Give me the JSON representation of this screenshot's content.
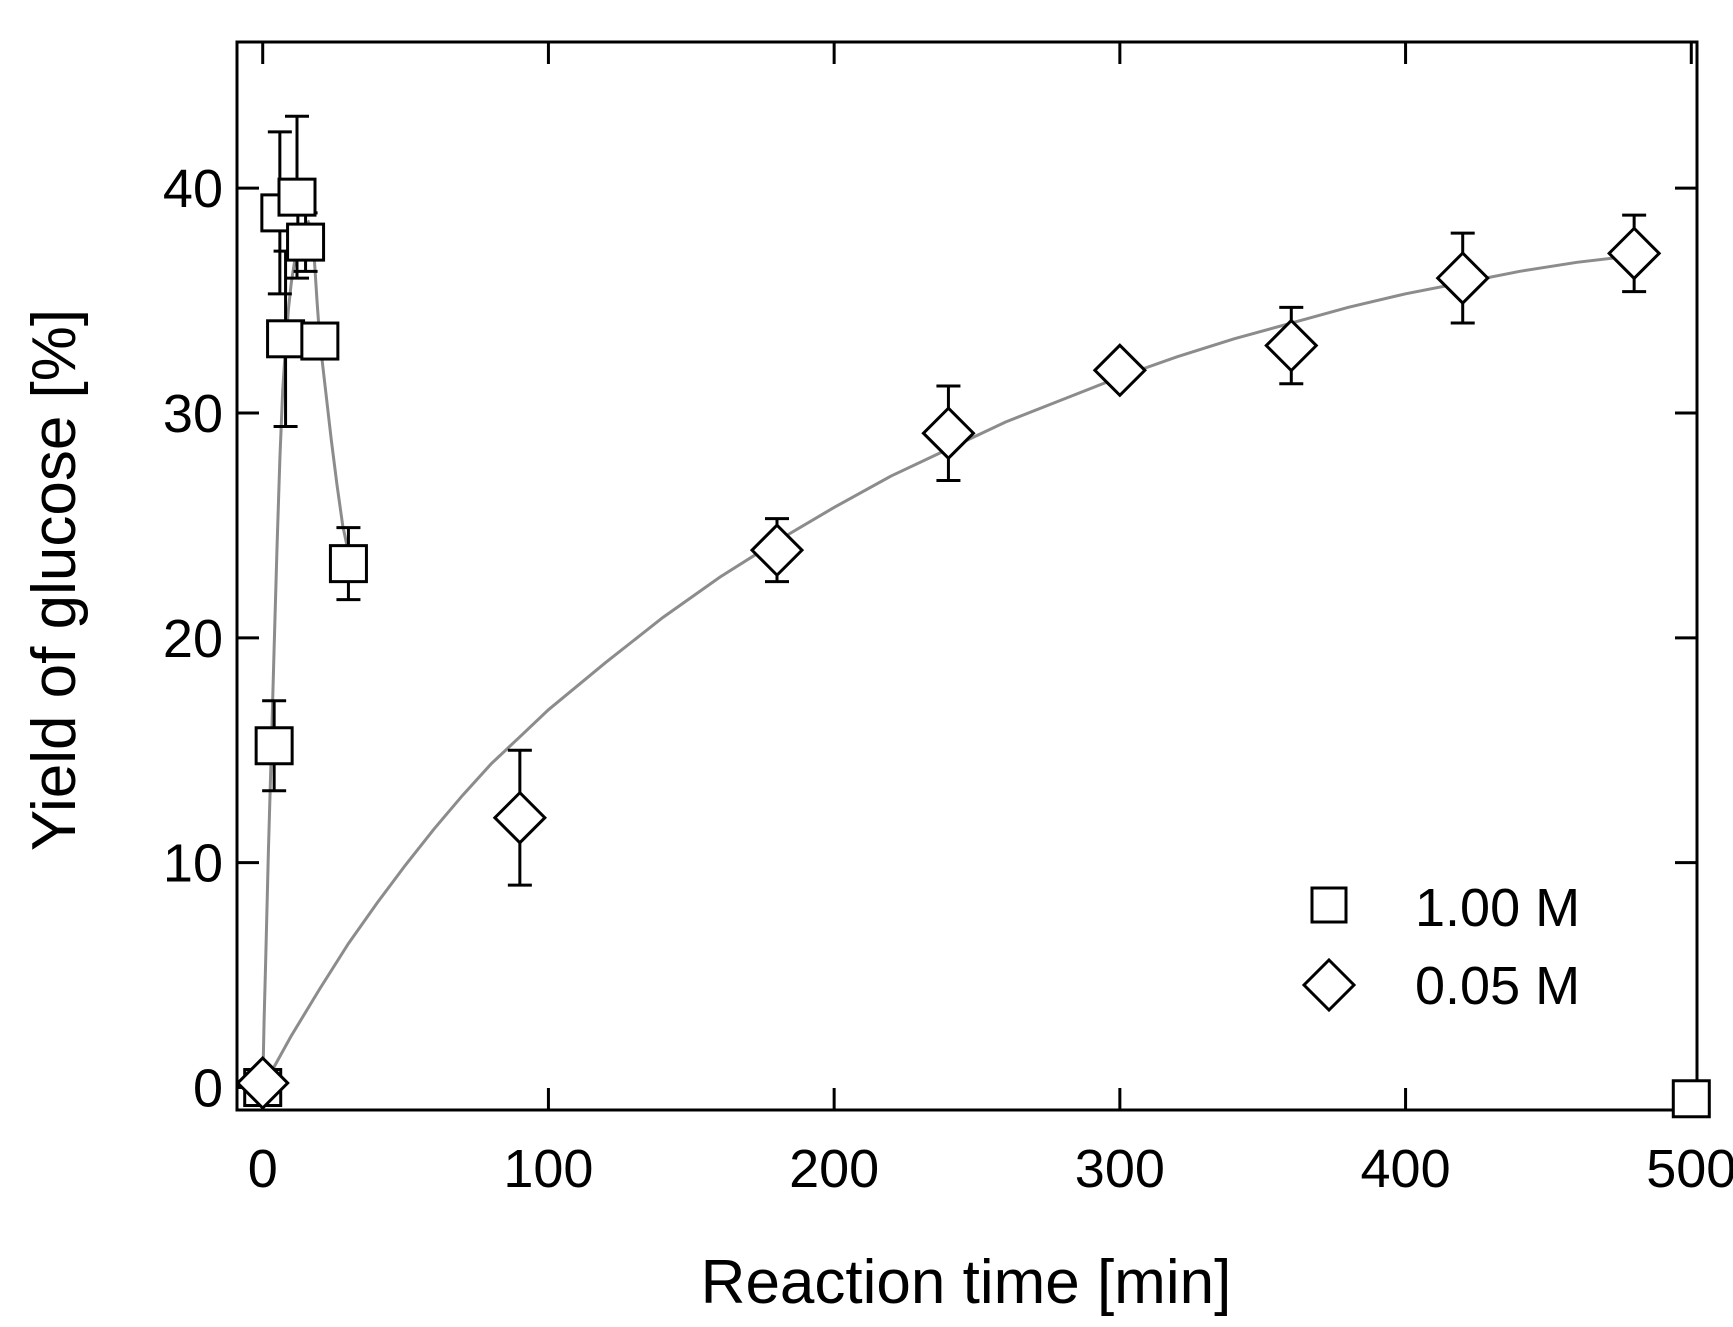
{
  "chart_data": {
    "type": "scatter",
    "xlabel": "Reaction time [min]",
    "ylabel": "Yield of glucose [%]",
    "xlim": [
      -9,
      502
    ],
    "ylim": [
      -1,
      46.5
    ],
    "x_ticks": [
      0,
      100,
      200,
      300,
      400,
      500
    ],
    "y_ticks": [
      0,
      10,
      20,
      30,
      40
    ],
    "grid": false,
    "legend_position": "bottom-right",
    "series": [
      {
        "name": "1.00 M",
        "marker": "square",
        "points": [
          {
            "x": 0,
            "y": 0,
            "err": 0
          },
          {
            "x": 4,
            "y": 15.2,
            "err": 2.0
          },
          {
            "x": 8,
            "y": 33.3,
            "err": 3.9
          },
          {
            "x": 6,
            "y": 38.9,
            "err": 3.6
          },
          {
            "x": 12,
            "y": 39.6,
            "err": 3.6
          },
          {
            "x": 15,
            "y": 37.6,
            "err": 1.3
          },
          {
            "x": 20,
            "y": 33.2,
            "err": 0
          },
          {
            "x": 30,
            "y": 23.3,
            "err": 1.6
          },
          {
            "x": 500,
            "y": -0.5,
            "err": 0
          }
        ],
        "fit": [
          [
            0,
            0
          ],
          [
            0.5,
            3
          ],
          [
            1,
            5.5
          ],
          [
            1.5,
            8
          ],
          [
            2,
            10.5
          ],
          [
            3,
            15
          ],
          [
            4,
            19.5
          ],
          [
            5,
            24
          ],
          [
            6,
            28
          ],
          [
            7,
            31
          ],
          [
            8,
            33
          ],
          [
            9,
            34.6
          ],
          [
            10,
            35.8
          ],
          [
            11,
            36.6
          ],
          [
            12,
            37.3
          ],
          [
            14,
            38.3
          ],
          [
            16,
            38.5
          ],
          [
            17,
            38.2
          ],
          [
            18,
            37
          ],
          [
            19,
            35
          ],
          [
            20,
            33.2
          ],
          [
            22,
            31
          ],
          [
            24,
            28.8
          ],
          [
            26,
            26.8
          ],
          [
            28,
            25
          ],
          [
            30,
            23.8
          ]
        ]
      },
      {
        "name": "0.05 M",
        "marker": "diamond",
        "points": [
          {
            "x": 0,
            "y": 0.2,
            "err": 0
          },
          {
            "x": 90,
            "y": 12.0,
            "err": 3.0
          },
          {
            "x": 180,
            "y": 23.9,
            "err": 1.4
          },
          {
            "x": 240,
            "y": 29.1,
            "err": 2.1
          },
          {
            "x": 300,
            "y": 31.9,
            "err": 0
          },
          {
            "x": 360,
            "y": 33.0,
            "err": 1.7
          },
          {
            "x": 420,
            "y": 36.0,
            "err": 2.0
          },
          {
            "x": 480,
            "y": 37.1,
            "err": 1.7
          }
        ],
        "fit": [
          [
            0,
            0
          ],
          [
            10,
            2.3
          ],
          [
            20,
            4.4
          ],
          [
            30,
            6.4
          ],
          [
            40,
            8.2
          ],
          [
            50,
            9.9
          ],
          [
            60,
            11.5
          ],
          [
            70,
            13
          ],
          [
            80,
            14.4
          ],
          [
            90,
            15.6
          ],
          [
            100,
            16.8
          ],
          [
            120,
            18.9
          ],
          [
            140,
            20.9
          ],
          [
            160,
            22.7
          ],
          [
            180,
            24.3
          ],
          [
            200,
            25.8
          ],
          [
            220,
            27.2
          ],
          [
            240,
            28.4
          ],
          [
            260,
            29.6
          ],
          [
            280,
            30.6
          ],
          [
            300,
            31.6
          ],
          [
            320,
            32.5
          ],
          [
            340,
            33.3
          ],
          [
            360,
            34.0
          ],
          [
            380,
            34.7
          ],
          [
            400,
            35.3
          ],
          [
            420,
            35.8
          ],
          [
            440,
            36.3
          ],
          [
            460,
            36.7
          ],
          [
            480,
            37.0
          ]
        ]
      }
    ]
  },
  "colors": {
    "axis": "#000000",
    "fit_line": "#8c8c8c",
    "marker_fill": "#ffffff",
    "marker_stroke": "#000000"
  }
}
